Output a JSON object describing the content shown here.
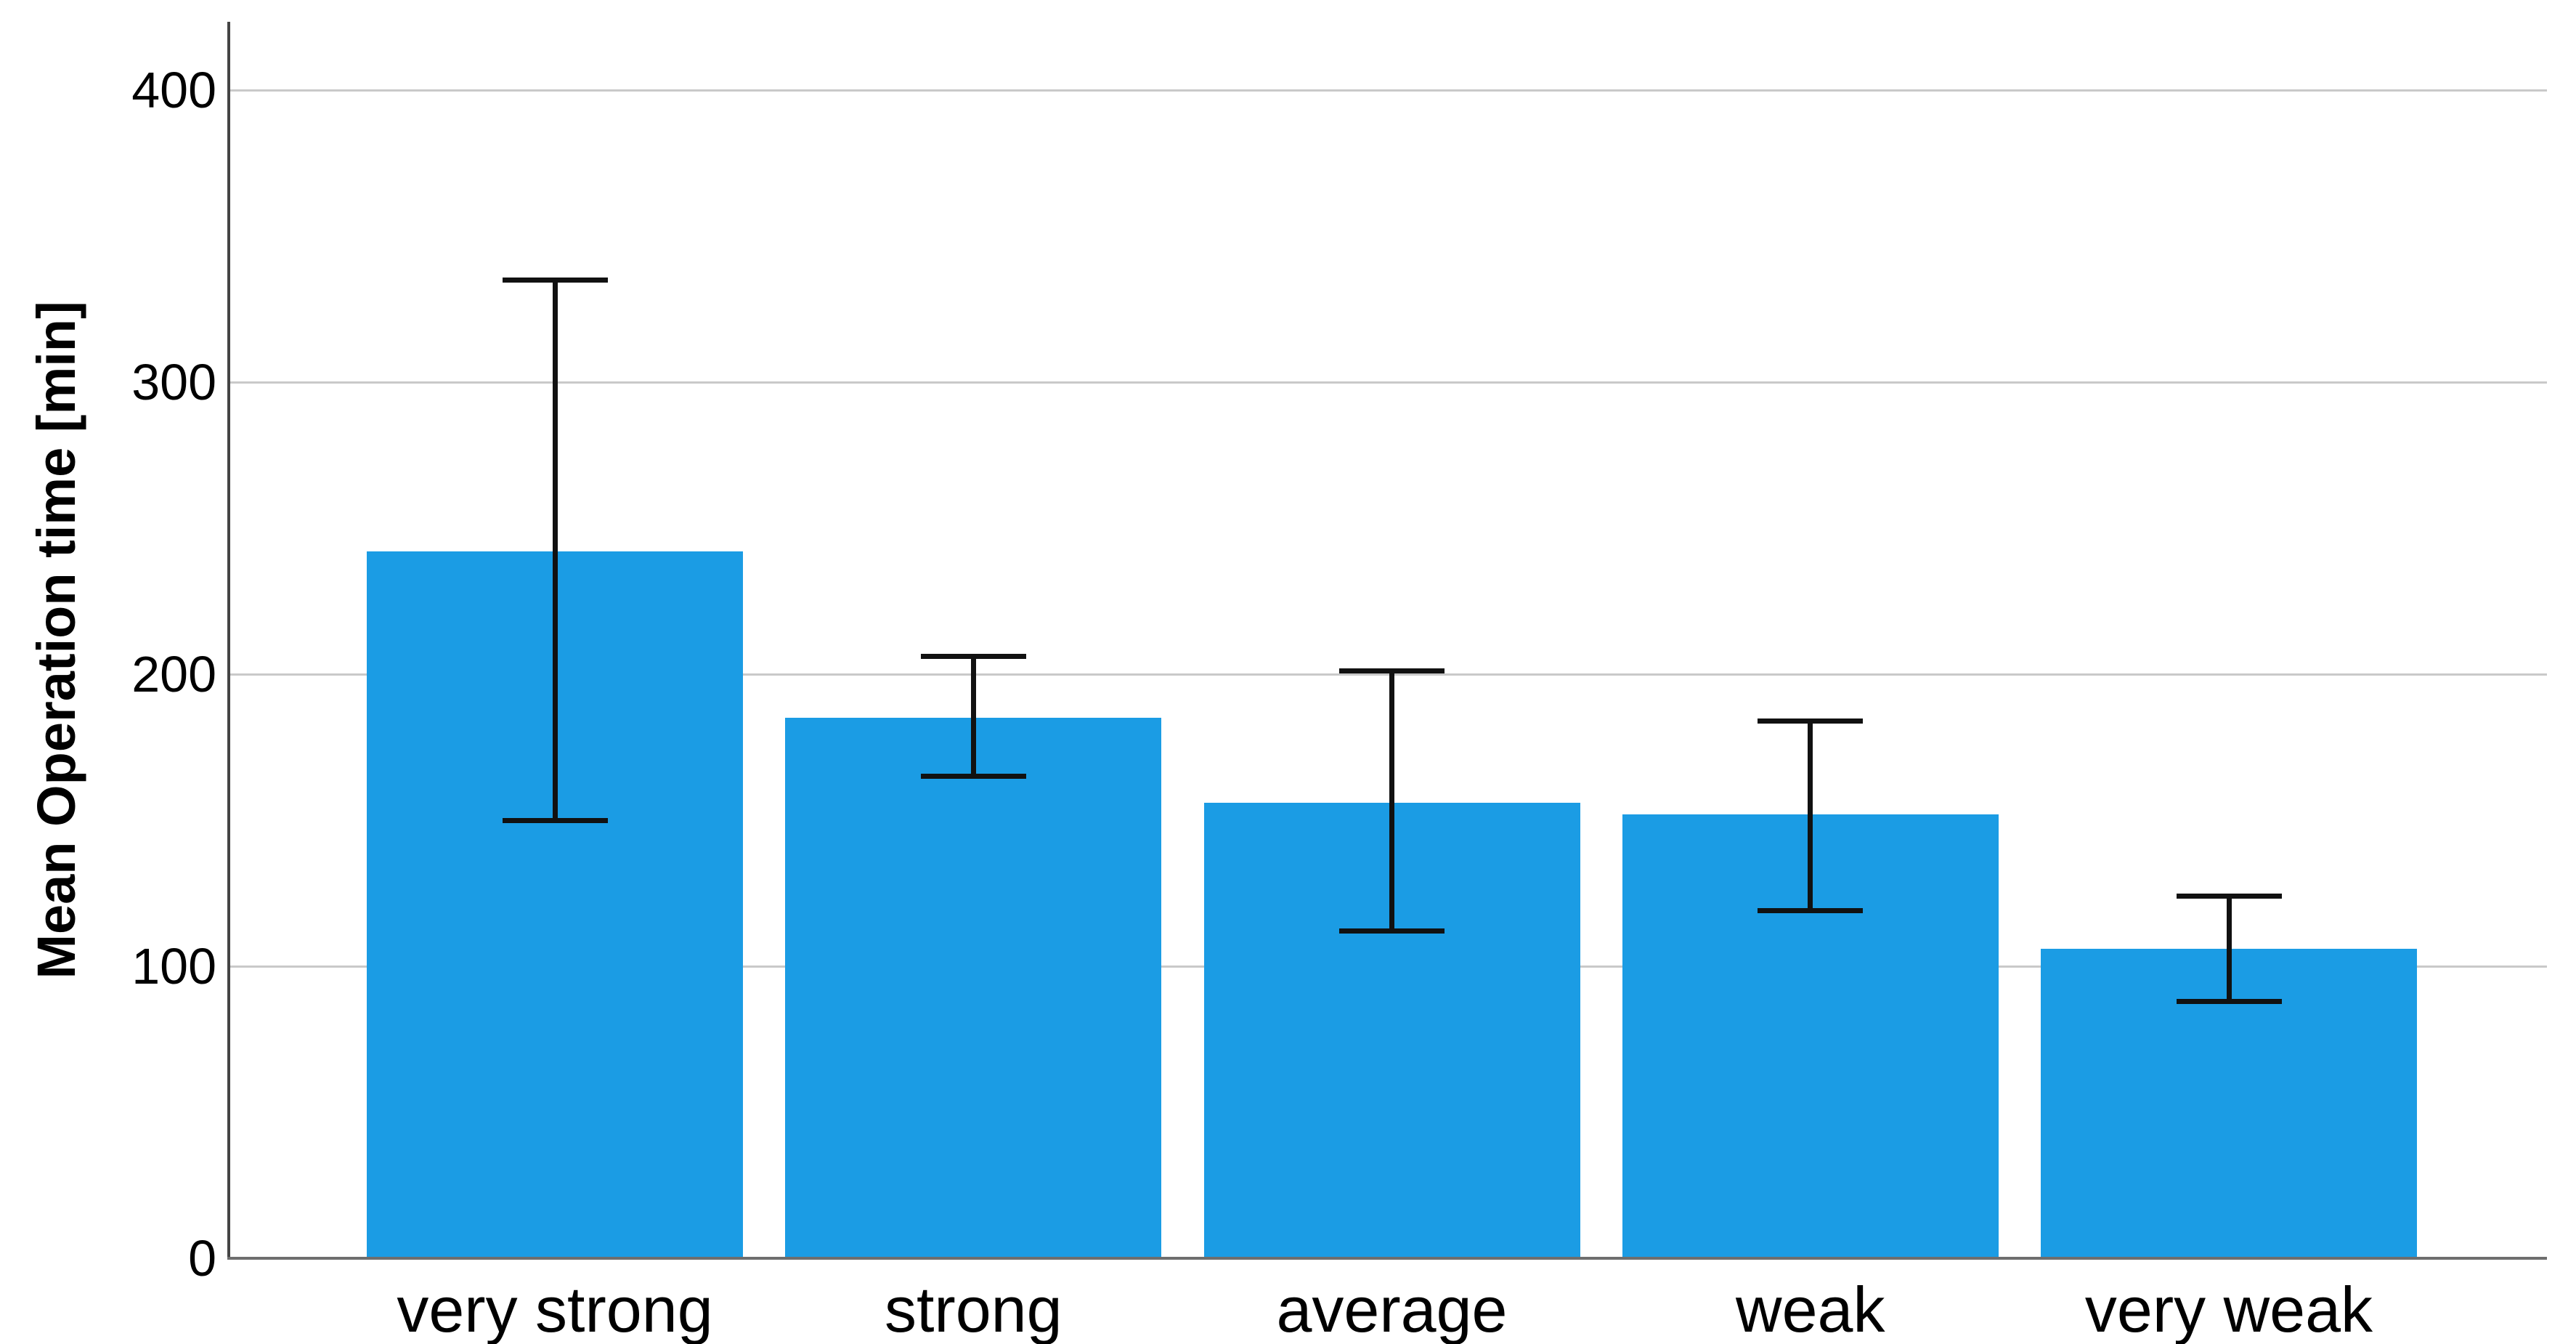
{
  "figure": {
    "background": "#ffffff"
  },
  "chart_data": {
    "type": "bar",
    "title": "",
    "xlabel": "",
    "ylabel": "Mean Operation time [min]",
    "categories": [
      "very strong",
      "strong",
      "average",
      "weak",
      "very weak"
    ],
    "values": [
      242,
      185,
      156,
      152,
      106
    ],
    "error_low": [
      150,
      165,
      112,
      119,
      88
    ],
    "error_high": [
      335,
      206,
      201,
      184,
      124
    ],
    "ylim": [
      0,
      400
    ],
    "yticks": [
      0,
      100,
      200,
      300,
      400
    ],
    "grid": "horizontal-gridlines",
    "legend": "none",
    "bar_color": "#1b9ce4",
    "error_color": "#111111",
    "gridline_color": "#c9c9c9",
    "axis_color": "#454545",
    "text_color": "#000000"
  }
}
